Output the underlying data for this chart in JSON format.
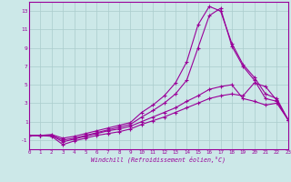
{
  "xlabel": "Windchill (Refroidissement éolien,°C)",
  "bg_color": "#cce8e8",
  "line_color": "#990099",
  "grid_color": "#aacccc",
  "xlim": [
    0,
    23
  ],
  "ylim": [
    -2,
    14
  ],
  "yticks": [
    -1,
    1,
    3,
    5,
    7,
    9,
    11,
    13
  ],
  "xticks": [
    0,
    1,
    2,
    3,
    4,
    5,
    6,
    7,
    8,
    9,
    10,
    11,
    12,
    13,
    14,
    15,
    16,
    17,
    18,
    19,
    20,
    21,
    22,
    23
  ],
  "curves": [
    [
      -0.5,
      -0.5,
      -0.6,
      -1.5,
      -1.1,
      -0.8,
      -0.5,
      -0.3,
      -0.1,
      0.2,
      0.7,
      1.1,
      1.5,
      2.0,
      2.5,
      3.0,
      3.5,
      3.8,
      4.0,
      3.8,
      5.2,
      4.8,
      3.3,
      1.2
    ],
    [
      -0.5,
      -0.5,
      -0.5,
      -1.2,
      -0.9,
      -0.6,
      -0.3,
      0.0,
      0.2,
      0.5,
      1.0,
      1.5,
      2.0,
      2.5,
      3.2,
      3.8,
      4.5,
      4.8,
      5.0,
      3.5,
      3.2,
      2.8,
      3.0,
      1.2
    ],
    [
      -0.5,
      -0.5,
      -0.5,
      -1.0,
      -0.8,
      -0.5,
      -0.2,
      0.1,
      0.4,
      0.7,
      1.5,
      2.2,
      3.0,
      4.0,
      5.5,
      9.0,
      12.5,
      13.3,
      9.2,
      7.0,
      5.5,
      3.5,
      3.2,
      1.2
    ],
    [
      -0.5,
      -0.5,
      -0.4,
      -0.8,
      -0.6,
      -0.3,
      0.0,
      0.3,
      0.6,
      0.9,
      2.0,
      2.8,
      3.8,
      5.2,
      7.5,
      11.5,
      13.5,
      13.0,
      9.5,
      7.2,
      5.8,
      4.0,
      3.5,
      1.2
    ]
  ]
}
